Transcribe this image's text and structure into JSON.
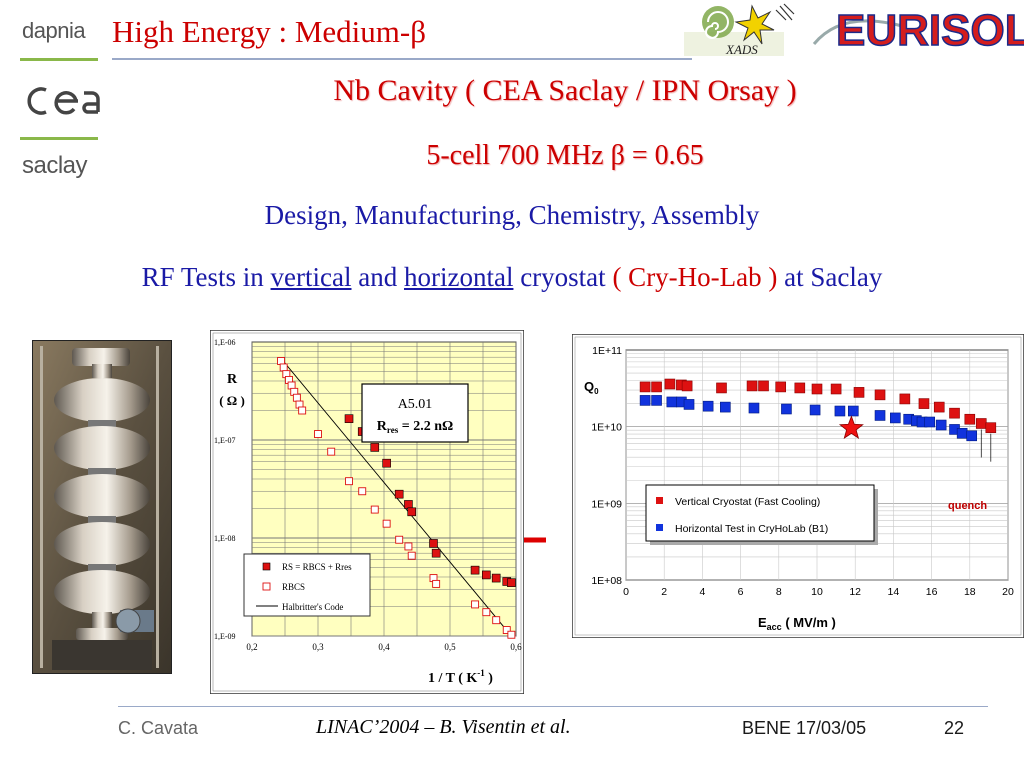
{
  "logos": {
    "dapnia": "dapnia",
    "cea": "cea",
    "saclay": "saclay",
    "xads": "XADS",
    "eurisol": "EURISOL"
  },
  "slide": {
    "title": "High Energy : Medium-β",
    "subtitle_1": "Nb Cavity ( CEA Saclay / IPN Orsay )",
    "subtitle_2": "5-cell  700 MHz   β = 0.65",
    "line_3": "Design, Manufacturing, Chemistry, Assembly",
    "line_4": {
      "p1": "RF Tests in ",
      "vertical": "vertical",
      "p2": " and ",
      "horizontal": "horizontal",
      "p3": " cryostat ",
      "lab": "( Cry-Ho-Lab )",
      "p4": " at Saclay"
    }
  },
  "footer": {
    "author": "C. Cavata",
    "conference": "LINAC’2004 – B. Visentin et al.",
    "date": "BENE 17/03/05",
    "page": "22"
  },
  "colors": {
    "title_red": "#cc0000",
    "text_blue": "#1a1aa6",
    "plot_yellow": "#ffffc0",
    "series_red": "#dd1111",
    "series_blue": "#1133dd"
  },
  "photo": {
    "icon": "cavity-photo-icon"
  },
  "arrow": {
    "icon": "red-arrow-icon"
  },
  "chart_data": [
    {
      "type": "scatter",
      "yscale": "log",
      "xlim": [
        0.2,
        0.6
      ],
      "ylim": [
        1e-09,
        1e-06
      ],
      "x_ticks": [
        "0,2",
        "0,3",
        "0,4",
        "0,5",
        "0,6"
      ],
      "y_ticks": [
        "1,E-06",
        "1,E-07",
        "1,E-08",
        "1,E-09"
      ],
      "ylabel_line1": "R",
      "ylabel_line2": "( Ω )",
      "xlabel": "1 / T (  K",
      "xlabel_sup": "-1",
      "xlabel_end": " )",
      "box_title": "A5.01",
      "box_rres_label": "R",
      "box_rres_sub": "res",
      "box_rres_value": " = 2.2 nΩ",
      "series": [
        {
          "name": "RS = RBCS + Rres",
          "marker": "filled-red",
          "x": [
            0.347,
            0.367,
            0.386,
            0.404,
            0.423,
            0.437,
            0.442,
            0.475,
            0.479,
            0.538,
            0.555,
            0.57,
            0.586,
            0.593
          ],
          "y": [
            1.65e-07,
            1.22e-07,
            8.4e-08,
            5.8e-08,
            2.8e-08,
            2.2e-08,
            1.85e-08,
            8.8e-09,
            7e-09,
            4.7e-09,
            4.2e-09,
            3.9e-09,
            3.6e-09,
            3.5e-09
          ]
        },
        {
          "name": "RBCS",
          "marker": "open-red",
          "x": [
            0.244,
            0.248,
            0.252,
            0.256,
            0.26,
            0.264,
            0.268,
            0.272,
            0.276,
            0.3,
            0.32,
            0.347,
            0.367,
            0.386,
            0.404,
            0.423,
            0.437,
            0.442,
            0.475,
            0.479,
            0.538,
            0.555,
            0.57,
            0.586,
            0.593
          ],
          "y": [
            6.4e-07,
            5.5e-07,
            4.7e-07,
            4.1e-07,
            3.6e-07,
            3.1e-07,
            2.7e-07,
            2.3e-07,
            2e-07,
            1.15e-07,
            7.6e-08,
            3.8e-08,
            3e-08,
            1.95e-08,
            1.4e-08,
            9.6e-09,
            8.2e-09,
            6.6e-09,
            3.9e-09,
            3.4e-09,
            2.1e-09,
            1.75e-09,
            1.45e-09,
            1.15e-09,
            1.03e-09
          ]
        },
        {
          "name": "Halbritter's Code",
          "marker": "line-black"
        }
      ]
    },
    {
      "type": "scatter",
      "yscale": "log",
      "xlim": [
        0,
        20
      ],
      "ylim": [
        100000000.0,
        100000000000.0
      ],
      "x_ticks": [
        "0",
        "2",
        "4",
        "6",
        "8",
        "10",
        "12",
        "14",
        "16",
        "18",
        "20"
      ],
      "y_ticks": [
        "1E+11",
        "1E+10",
        "1E+09",
        "1E+08"
      ],
      "ylabel": "Q",
      "ylabel_sub": "0",
      "xlabel": "E",
      "xlabel_sub": "acc",
      "xlabel_rest": " ( MV/m )",
      "annotation": "quench",
      "series": [
        {
          "name": "Vertical Cryostat (Fast Cooling)",
          "color": "red",
          "x": [
            1.0,
            1.6,
            2.3,
            2.9,
            3.2,
            5.0,
            6.6,
            7.2,
            8.1,
            9.1,
            10.0,
            11.0,
            12.2,
            13.3,
            14.6,
            15.6,
            16.4,
            17.2,
            18.0,
            18.6,
            19.1
          ],
          "y": [
            33000000000.0,
            33000000000.0,
            36000000000.0,
            35000000000.0,
            34000000000.0,
            32000000000.0,
            34000000000.0,
            34000000000.0,
            33000000000.0,
            32000000000.0,
            31000000000.0,
            31000000000.0,
            28000000000.0,
            26000000000.0,
            23000000000.0,
            20000000000.0,
            18000000000.0,
            15000000000.0,
            12500000000.0,
            11000000000.0,
            9700000000.0
          ]
        },
        {
          "name": "Horizontal Test in CryHoLab (B1)",
          "color": "blue",
          "x": [
            1.0,
            1.6,
            2.4,
            2.9,
            3.3,
            4.3,
            5.2,
            6.7,
            8.4,
            9.9,
            11.2,
            11.9,
            13.3,
            14.1,
            14.8,
            15.2,
            15.5,
            15.9,
            16.5,
            17.2,
            17.6,
            18.1
          ],
          "y": [
            22000000000.0,
            22000000000.0,
            21000000000.0,
            21000000000.0,
            19500000000.0,
            18500000000.0,
            18000000000.0,
            17500000000.0,
            17000000000.0,
            16500000000.0,
            16000000000.0,
            16000000000.0,
            14000000000.0,
            13000000000.0,
            12500000000.0,
            12000000000.0,
            11500000000.0,
            11500000000.0,
            10500000000.0,
            9200000000.0,
            8200000000.0,
            7600000000.0
          ]
        },
        {
          "name": "star",
          "marker": "red-star",
          "x": [
            11.8
          ],
          "y": [
            9500000000.0
          ]
        }
      ]
    }
  ]
}
